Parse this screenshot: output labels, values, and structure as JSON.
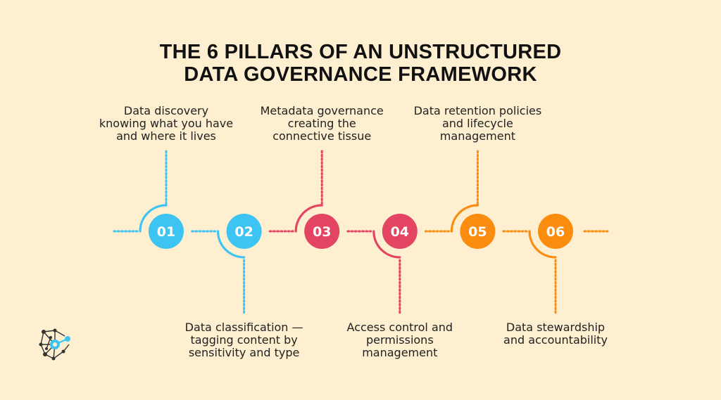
{
  "title": {
    "line1": "THE 6 PILLARS OF AN UNSTRUCTURED",
    "line2": "DATA GOVERNANCE FRAMEWORK"
  },
  "colors": {
    "background": "#fdefcf",
    "blue": "#3ec4f2",
    "red": "#e24462",
    "orange": "#fa8c10"
  },
  "pillars": [
    {
      "number": "01",
      "color": "#3ec4f2",
      "position": "top",
      "lines": [
        "Data discovery",
        "knowing what you have",
        "and where it lives"
      ]
    },
    {
      "number": "02",
      "color": "#3ec4f2",
      "position": "bottom",
      "lines": [
        "Data classification —",
        "tagging content by",
        "sensitivity and type"
      ]
    },
    {
      "number": "03",
      "color": "#e24462",
      "position": "top",
      "lines": [
        "Metadata governance",
        "creating the",
        "connective tissue"
      ]
    },
    {
      "number": "04",
      "color": "#e24462",
      "position": "bottom",
      "lines": [
        "Access control and",
        "permissions",
        "management"
      ]
    },
    {
      "number": "05",
      "color": "#fa8c10",
      "position": "top",
      "lines": [
        "Data retention policies",
        "and lifecycle",
        "management"
      ]
    },
    {
      "number": "06",
      "color": "#fa8c10",
      "position": "bottom",
      "lines": [
        "Data stewardship",
        "and accountability"
      ]
    }
  ],
  "logo": {
    "icon": "network-node-icon"
  }
}
